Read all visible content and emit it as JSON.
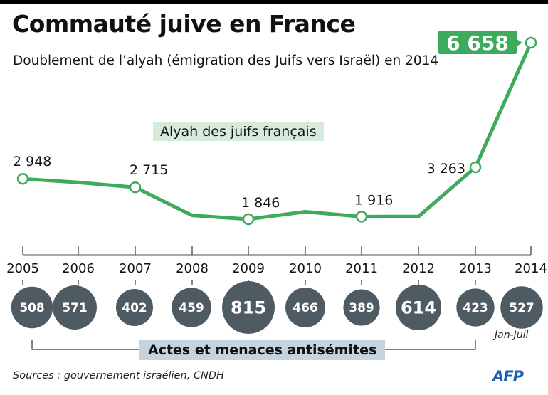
{
  "header": {
    "title": "Commauté juive en France",
    "subtitle": "Doublement de l’alyah (émigration des Juifs vers Israël) en 2014"
  },
  "footer": {
    "source": "Sources :  gouvernement israélien, CNDH",
    "logo": "AFP"
  },
  "colors": {
    "line": "#3eaa5c",
    "highlight_box": "#3eaa5c",
    "series_label_bg": "#d6ebdc",
    "bubble": "#4f5b63",
    "acts_label_bg": "#c4d3dd",
    "logo": "#1a5fb4"
  },
  "chart_data": [
    {
      "type": "line",
      "title": "Alyah des juifs français",
      "x": [
        2005,
        2006,
        2007,
        2008,
        2009,
        2010,
        2011,
        2012,
        2013,
        2014
      ],
      "series": [
        {
          "name": "Alyah des juifs français",
          "values": [
            2948,
            2850,
            2715,
            1950,
            1846,
            2050,
            1916,
            1920,
            3263,
            6658
          ]
        }
      ],
      "labeled_points": [
        {
          "year": 2005,
          "label": "2 948"
        },
        {
          "year": 2007,
          "label": "2 715"
        },
        {
          "year": 2009,
          "label": "1 846"
        },
        {
          "year": 2011,
          "label": "1 916"
        },
        {
          "year": 2013,
          "label": "3 263"
        },
        {
          "year": 2014,
          "label": "6 658",
          "highlighted": true
        }
      ],
      "xlabel": "",
      "ylabel": "",
      "tick_labels": [
        "2005",
        "2006",
        "2007",
        "2008",
        "2009",
        "2010",
        "2011",
        "2012",
        "2013",
        "2014"
      ],
      "grid": false
    },
    {
      "type": "bubble",
      "title": "Actes et menaces antisémites",
      "categories": [
        "2005",
        "2006",
        "2007",
        "2008",
        "2009",
        "2010",
        "2011",
        "2012",
        "2013",
        "2014"
      ],
      "values": [
        508,
        571,
        402,
        459,
        815,
        466,
        389,
        614,
        423,
        527
      ],
      "labels": [
        "508",
        "571",
        "402",
        "459",
        "815",
        "466",
        "389",
        "614",
        "423",
        "527"
      ],
      "annotations": [
        {
          "category": "2014",
          "text": "Jan-Juil"
        }
      ]
    }
  ]
}
